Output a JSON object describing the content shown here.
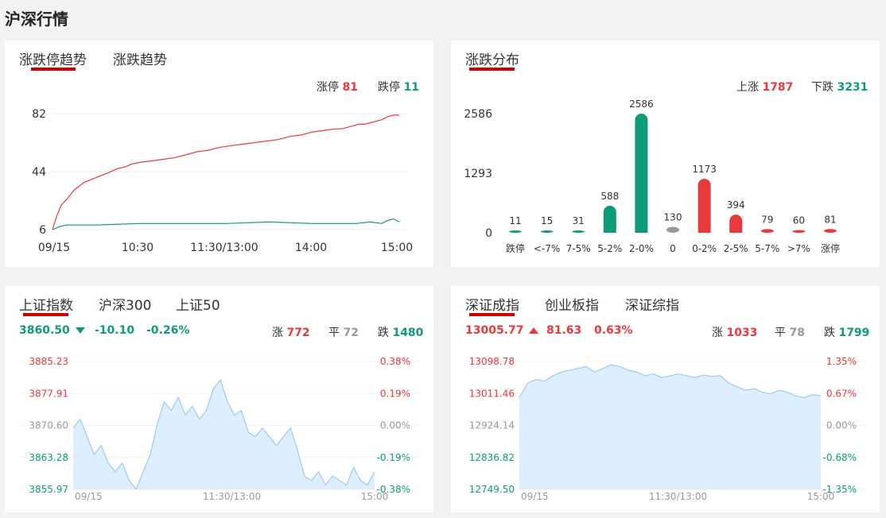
{
  "page": {
    "title": "沪深行情"
  },
  "limit_trend": {
    "tabs": [
      {
        "label": "涨跌停趋势",
        "active": true
      },
      {
        "label": "涨跌趋势",
        "active": false
      }
    ],
    "limit_up_label": "涨停",
    "limit_up_value": "81",
    "limit_down_label": "跌停",
    "limit_down_value": "11"
  },
  "distribution": {
    "tab": "涨跌分布",
    "up_label": "上涨",
    "up_value": "1787",
    "down_label": "下跌",
    "down_value": "3231"
  },
  "index_left": {
    "tabs": [
      {
        "label": "上证指数",
        "active": true
      },
      {
        "label": "沪深300",
        "active": false
      },
      {
        "label": "上证50",
        "active": false
      }
    ],
    "price": "3860.50",
    "change": "-10.10",
    "change_pct": "-0.26%",
    "rise_label": "涨",
    "rise_value": "772",
    "flat_label": "平",
    "flat_value": "72",
    "fall_label": "跌",
    "fall_value": "1480"
  },
  "index_right": {
    "tabs": [
      {
        "label": "深证成指",
        "active": true
      },
      {
        "label": "创业板指",
        "active": false
      },
      {
        "label": "深证综指",
        "active": false
      }
    ],
    "price": "13005.77",
    "change": "81.63",
    "change_pct": "0.63%",
    "rise_label": "涨",
    "rise_value": "1033",
    "flat_label": "平",
    "flat_value": "78",
    "fall_label": "跌",
    "fall_value": "1799"
  },
  "colors": {
    "up": "#e8393c",
    "down": "#0f9b7a",
    "flat": "#999999",
    "area_fill": "#ddeeff",
    "area_line": "#9ccaf2",
    "tab_underline": "#cc0000"
  },
  "icons": {
    "down_arrow": "arrow-down-icon",
    "up_arrow": "arrow-up-icon"
  },
  "chart_data": [
    {
      "type": "line",
      "x_ticks": [
        "09/15",
        "10:30",
        "11:30/13:00",
        "14:00",
        "15:00"
      ],
      "y_ticks": [
        "82",
        "44",
        "6"
      ],
      "ylim": [
        6,
        82
      ],
      "series": [
        {
          "name": "涨停",
          "color": "#e8393c",
          "x": [
            0,
            3,
            6,
            10,
            15,
            22,
            30,
            38,
            45,
            50,
            55,
            60,
            68,
            76,
            84,
            92,
            100,
            108,
            116,
            124,
            132,
            140,
            148,
            156,
            164,
            172,
            180,
            188,
            196,
            200,
            204,
            208,
            212,
            216,
            220,
            224,
            228,
            232,
            236,
            240
          ],
          "values": [
            6,
            15,
            22,
            26,
            32,
            37,
            40,
            43,
            46,
            47,
            49,
            50,
            51,
            52,
            53,
            55,
            57,
            58,
            60,
            61,
            62,
            63,
            64,
            65,
            67,
            68,
            70,
            71,
            72,
            72,
            73,
            74,
            75,
            75,
            76,
            77,
            78,
            80,
            81,
            81
          ]
        },
        {
          "name": "跌停",
          "color": "#0f9b7a",
          "x": [
            0,
            5,
            10,
            30,
            60,
            90,
            120,
            150,
            180,
            200,
            210,
            220,
            228,
            232,
            236,
            240
          ],
          "values": [
            6,
            8,
            9,
            9,
            10,
            10,
            10,
            11,
            10,
            10,
            10,
            11,
            10,
            12,
            13,
            11
          ]
        }
      ]
    },
    {
      "type": "bar",
      "categories": [
        "跌停",
        "<-7%",
        "7-5%",
        "5-2%",
        "2-0%",
        "0",
        "0-2%",
        "2-5%",
        "5-7%",
        ">7%",
        "涨停"
      ],
      "values": [
        11,
        15,
        31,
        588,
        2586,
        130,
        1173,
        394,
        79,
        60,
        81
      ],
      "y_ticks": [
        "2586",
        "1293",
        "0"
      ],
      "ylim": [
        0,
        2586
      ]
    },
    {
      "type": "area",
      "x_ticks": [
        "09/15",
        "11:30/13:00",
        "15:00"
      ],
      "left_ticks": [
        "3885.23",
        "3877.91",
        "3870.60",
        "3863.28",
        "3855.97"
      ],
      "right_ticks": [
        "0.38%",
        "0.19%",
        "0.00%",
        "-0.19%",
        "-0.38%"
      ],
      "ylim": [
        3855.97,
        3885.23
      ],
      "values": [
        3870,
        3872,
        3868,
        3864,
        3866,
        3862,
        3860,
        3862,
        3858,
        3856,
        3860,
        3864,
        3871,
        3876,
        3874,
        3877,
        3873,
        3875,
        3872,
        3874,
        3879,
        3881,
        3876,
        3873,
        3874,
        3869,
        3868,
        3870,
        3868,
        3866,
        3868,
        3870,
        3865,
        3859,
        3858,
        3860,
        3857,
        3859,
        3858,
        3857,
        3861,
        3858,
        3857,
        3860
      ]
    },
    {
      "type": "area",
      "x_ticks": [
        "09/15",
        "11:30/13:00",
        "15:00"
      ],
      "left_ticks": [
        "13098.78",
        "13011.46",
        "12924.14",
        "12836.82",
        "12749.50"
      ],
      "right_ticks": [
        "1.35%",
        "0.67%",
        "0.00%",
        "-0.68%",
        "-1.35%"
      ],
      "ylim": [
        12749.5,
        13098.78
      ],
      "values": [
        13000,
        13040,
        13050,
        13045,
        13060,
        13070,
        13075,
        13080,
        13085,
        13070,
        13080,
        13090,
        13085,
        13075,
        13070,
        13060,
        13065,
        13055,
        13060,
        13065,
        13060,
        13055,
        13062,
        13058,
        13060,
        13040,
        13030,
        13020,
        13025,
        13015,
        13010,
        13020,
        13015,
        13005,
        13000,
        13008,
        13005
      ]
    }
  ]
}
